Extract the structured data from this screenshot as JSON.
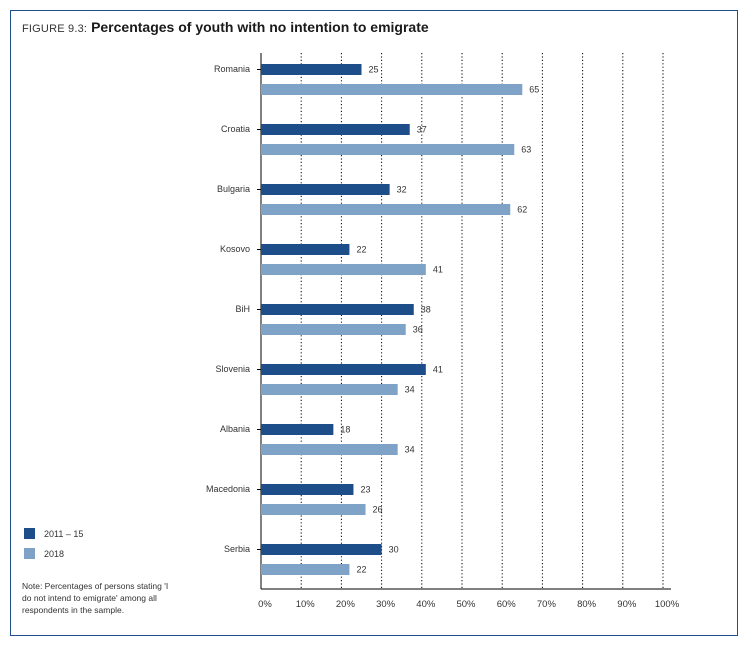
{
  "figure_label": "FIGURE 9.3:",
  "title": "Percentages of youth with no intention to emigrate",
  "note": "Note: Percentages of persons stating 'I do not intend to emigrate' among all respondents in the sample.",
  "colors": {
    "series_2011_15": "#1d4e89",
    "series_2018": "#7fa3c6",
    "frame": "#1f4e8c",
    "grid": "#000000"
  },
  "chart_data": {
    "type": "bar",
    "orientation": "horizontal",
    "categories": [
      "Romania",
      "Croatia",
      "Bulgaria",
      "Kosovo",
      "BiH",
      "Slovenia",
      "Albania",
      "Macedonia",
      "Serbia"
    ],
    "series": [
      {
        "name": "2011 – 15",
        "values": [
          25,
          37,
          32,
          22,
          38,
          41,
          18,
          23,
          30
        ]
      },
      {
        "name": "2018",
        "values": [
          65,
          63,
          62,
          41,
          36,
          34,
          34,
          26,
          22
        ]
      }
    ],
    "xticks": [
      "0%",
      "10%",
      "20%",
      "30%",
      "40%",
      "50%",
      "60%",
      "70%",
      "80%",
      "90%",
      "100%"
    ],
    "xlim": [
      0,
      100
    ],
    "grid": "dotted vertical",
    "legend_position": "bottom-left"
  }
}
